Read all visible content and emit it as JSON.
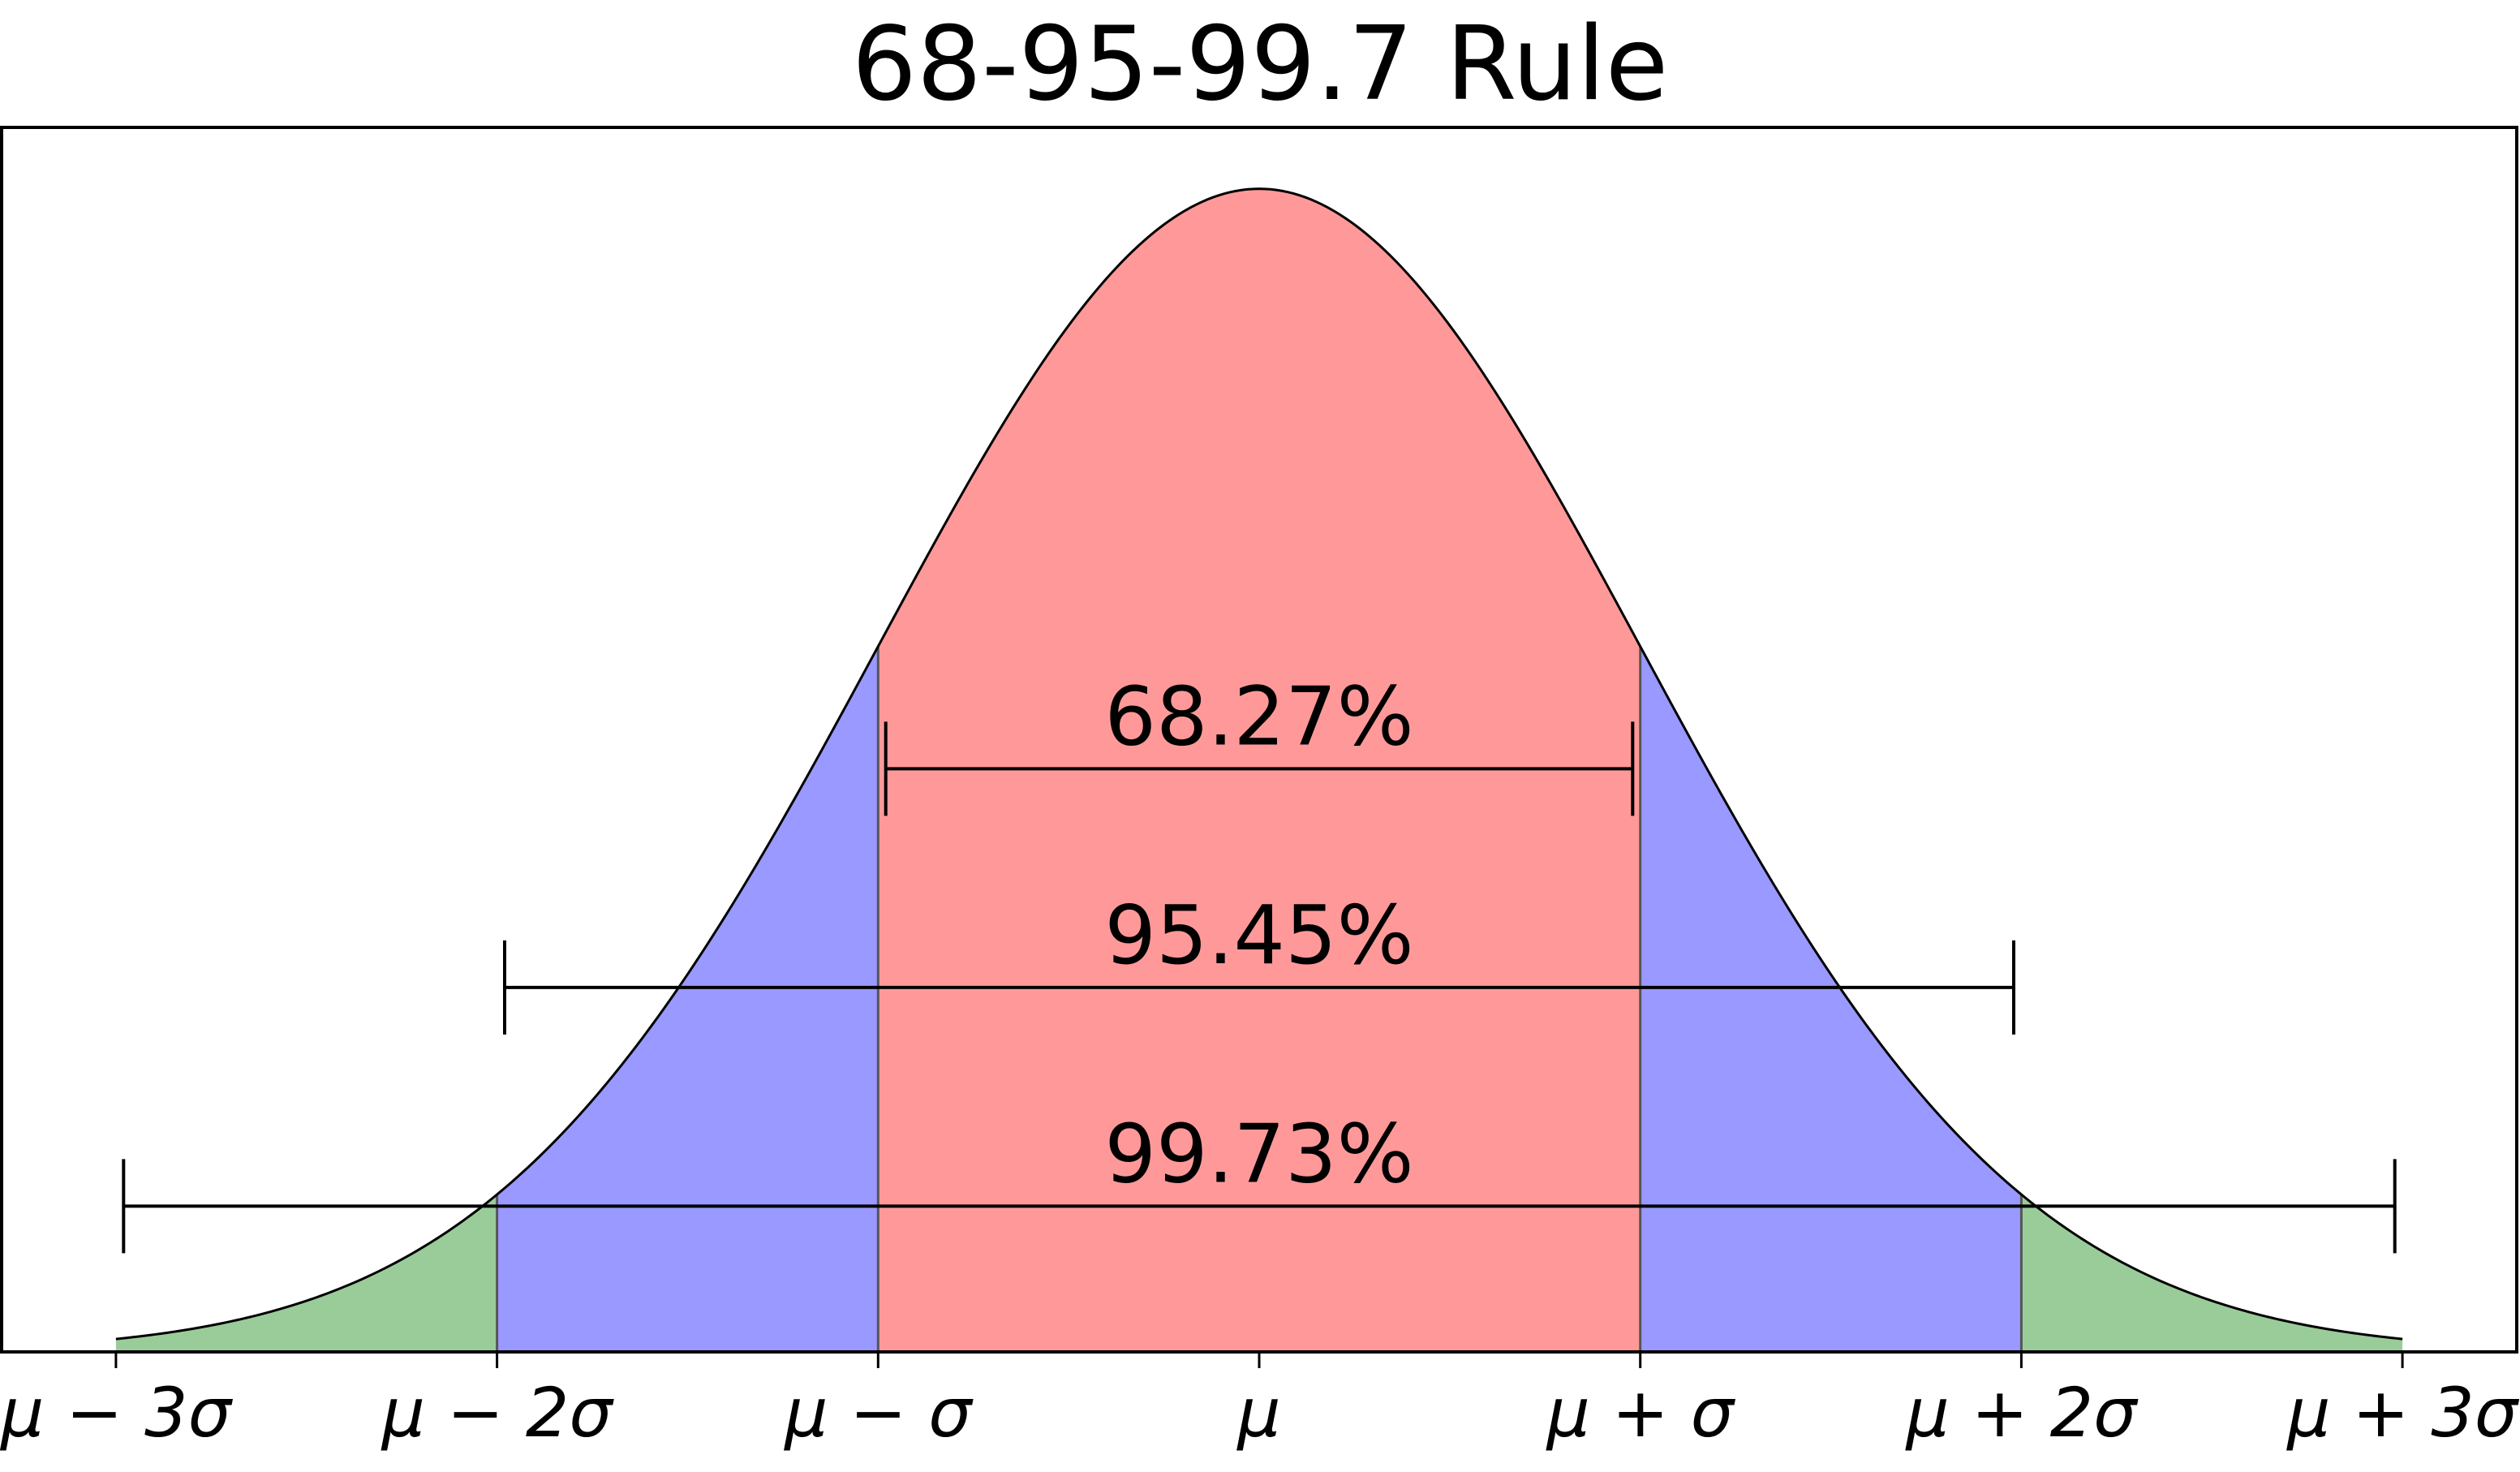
{
  "chart_data": {
    "type": "area",
    "title": "68-95-99.7 Rule",
    "distribution": "normal",
    "mu": 0,
    "sigma": 1,
    "xlim": [
      -3.3,
      3.3
    ],
    "x_range_plotted": [
      -3,
      3
    ],
    "ylim": [
      0,
      0.42
    ],
    "xtick_values": [
      -3,
      -2,
      -1,
      0,
      1,
      2,
      3
    ],
    "xtick_labels": [
      "μ − 3σ",
      "μ − 2σ",
      "μ − σ",
      "μ",
      "μ + σ",
      "μ + 2σ",
      "μ + 3σ"
    ],
    "regions": [
      {
        "x_from": -3,
        "x_to": -2,
        "color": "#9acc9a"
      },
      {
        "x_from": -2,
        "x_to": -1,
        "color": "#9999ff"
      },
      {
        "x_from": -1,
        "x_to": 1,
        "color": "#ff9999"
      },
      {
        "x_from": 1,
        "x_to": 2,
        "color": "#9999ff"
      },
      {
        "x_from": 2,
        "x_to": 3,
        "color": "#9acc9a"
      }
    ],
    "intervals": [
      {
        "label": "68.27%",
        "x_from": -0.98,
        "x_to": 0.98,
        "y": 0.2
      },
      {
        "label": "95.45%",
        "x_from": -1.98,
        "x_to": 1.98,
        "y": 0.125
      },
      {
        "label": "99.73%",
        "x_from": -2.98,
        "x_to": 2.98,
        "y": 0.05
      }
    ],
    "grid": false,
    "legend": false
  }
}
